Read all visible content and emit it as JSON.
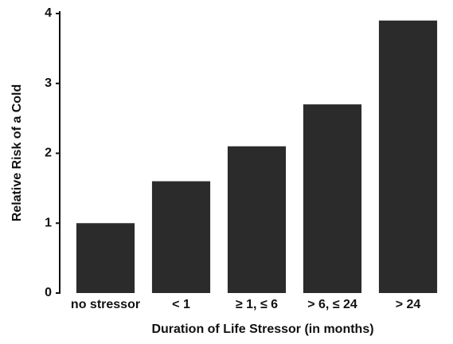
{
  "chart_data": {
    "type": "bar",
    "x_label": "Duration of Life Stressor (in months)",
    "y_label": "Relative Risk of a Cold",
    "categories": [
      "no stressor",
      "< 1",
      "≥ 1, ≤ 6",
      "> 6, ≤ 24",
      "> 24"
    ],
    "values": [
      1.0,
      1.6,
      2.1,
      2.7,
      3.9
    ],
    "color": "#2b2b2b",
    "ylim": [
      0,
      4
    ],
    "yticks": [
      0,
      1,
      2,
      3,
      4
    ],
    "grid": false
  }
}
